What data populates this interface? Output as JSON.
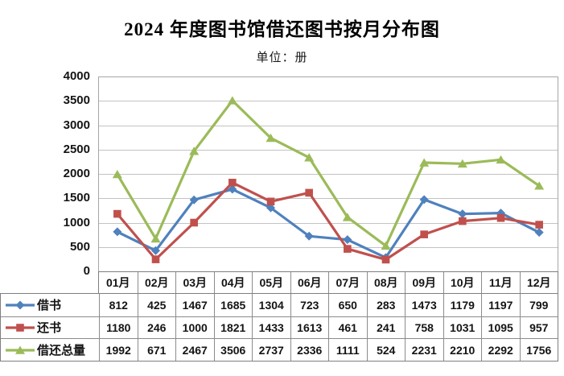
{
  "title": "2024 年度图书馆借还图书按月分布图",
  "subtitle": "单位：册",
  "chart_data": {
    "type": "line",
    "categories": [
      "01月",
      "02月",
      "03月",
      "04月",
      "05月",
      "06月",
      "07月",
      "08月",
      "09月",
      "10月",
      "11月",
      "12月"
    ],
    "series": [
      {
        "name": "借书",
        "marker": "diamond",
        "color": "#4F81BD",
        "values": [
          812,
          425,
          1467,
          1685,
          1304,
          723,
          650,
          283,
          1473,
          1179,
          1197,
          799
        ]
      },
      {
        "name": "还书",
        "marker": "square",
        "color": "#C0504D",
        "values": [
          1180,
          246,
          1000,
          1821,
          1433,
          1613,
          461,
          241,
          758,
          1031,
          1095,
          957
        ]
      },
      {
        "name": "借还总量",
        "marker": "triangle",
        "color": "#9BBB59",
        "values": [
          1992,
          671,
          2467,
          3506,
          2737,
          2336,
          1111,
          524,
          2231,
          2210,
          2292,
          1756
        ]
      }
    ],
    "title": "2024 年度图书馆借还图书按月分布图",
    "xlabel": "",
    "ylabel": "单位：册",
    "ylim": [
      0,
      4000
    ],
    "ytick_interval": 500,
    "yticks": [
      "4000",
      "3500",
      "3000",
      "2500",
      "2000",
      "1500",
      "1000",
      "500",
      "0"
    ],
    "grid": "horizontal",
    "legend_position": "data-table-left-column",
    "data_table_below_chart": true
  },
  "colors": {
    "gridline": "#C3C3C3",
    "plot_border": "#A6A6A6",
    "table_border": "#7F7F7F",
    "text": "#141414",
    "background": "#FFFFFF"
  }
}
